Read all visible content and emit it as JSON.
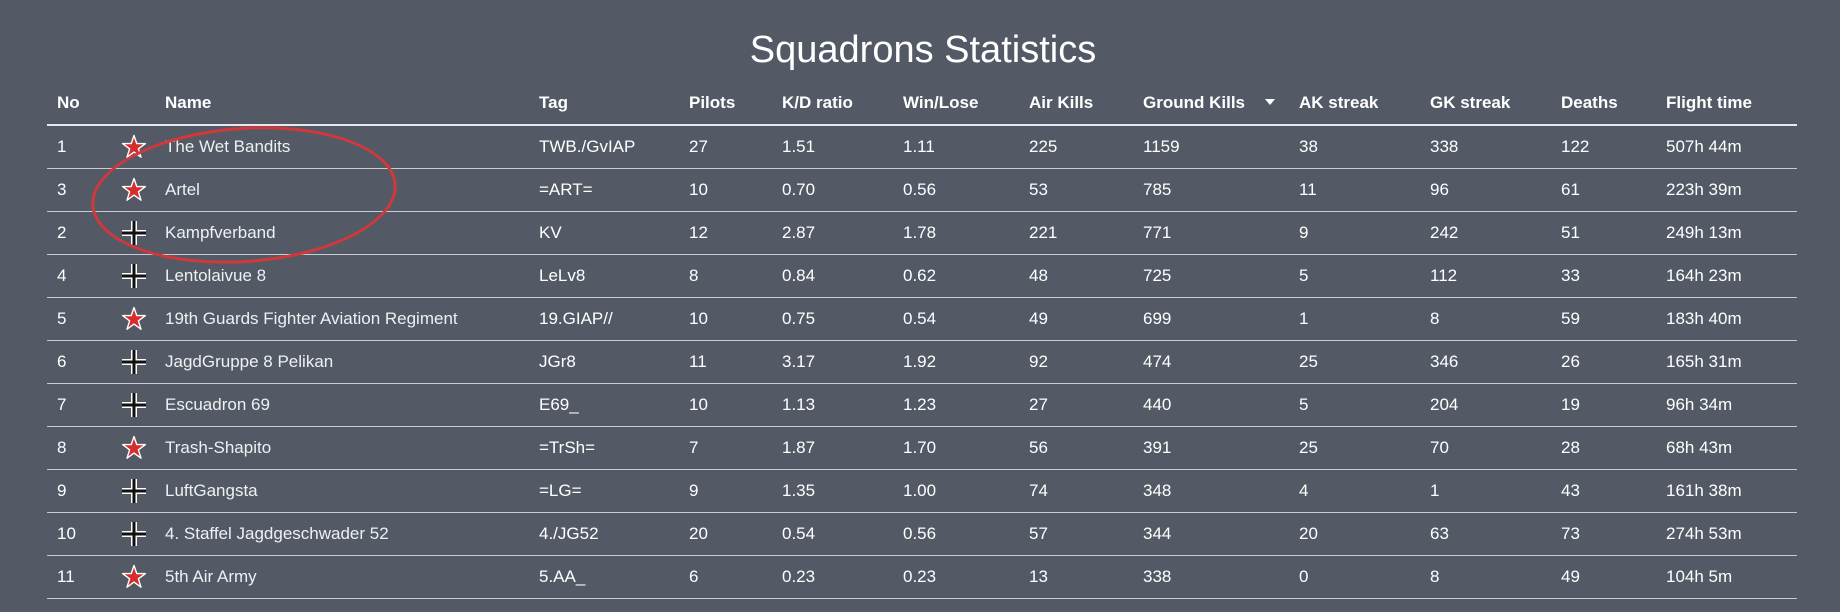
{
  "page": {
    "title": "Squadrons Statistics"
  },
  "table": {
    "headers": {
      "no": "No",
      "emblem": "",
      "name": "Name",
      "tag": "Tag",
      "pilots": "Pilots",
      "kd_ratio": "K/D ratio",
      "win_lose": "Win/Lose",
      "air_kills": "Air Kills",
      "ground_kills": "Ground Kills",
      "ak_streak": "AK streak",
      "gk_streak": "GK streak",
      "deaths": "Deaths",
      "flight_time": "Flight time"
    },
    "sorted_by": "ground_kills",
    "sort_direction": "descending",
    "rows": [
      {
        "no": "1",
        "emblem": "red-star-icon",
        "name": "The Wet Bandits",
        "tag": "TWB./GvIAP",
        "pilots": "27",
        "kd_ratio": "1.51",
        "win_lose": "1.11",
        "air_kills": "225",
        "ground_kills": "1159",
        "ak_streak": "38",
        "gk_streak": "338",
        "deaths": "122",
        "flight_time": "507h 44m"
      },
      {
        "no": "3",
        "emblem": "red-star-icon",
        "name": "Artel",
        "tag": "=ART=",
        "pilots": "10",
        "kd_ratio": "0.70",
        "win_lose": "0.56",
        "air_kills": "53",
        "ground_kills": "785",
        "ak_streak": "11",
        "gk_streak": "96",
        "deaths": "61",
        "flight_time": "223h 39m"
      },
      {
        "no": "2",
        "emblem": "balkenkreuz-icon",
        "name": "Kampfverband",
        "tag": "KV",
        "pilots": "12",
        "kd_ratio": "2.87",
        "win_lose": "1.78",
        "air_kills": "221",
        "ground_kills": "771",
        "ak_streak": "9",
        "gk_streak": "242",
        "deaths": "51",
        "flight_time": "249h 13m"
      },
      {
        "no": "4",
        "emblem": "balkenkreuz-icon",
        "name": "Lentolaivue 8",
        "tag": "LeLv8",
        "pilots": "8",
        "kd_ratio": "0.84",
        "win_lose": "0.62",
        "air_kills": "48",
        "ground_kills": "725",
        "ak_streak": "5",
        "gk_streak": "112",
        "deaths": "33",
        "flight_time": "164h 23m"
      },
      {
        "no": "5",
        "emblem": "red-star-icon",
        "name": "19th Guards Fighter Aviation Regiment",
        "tag": "19.GIAP//",
        "pilots": "10",
        "kd_ratio": "0.75",
        "win_lose": "0.54",
        "air_kills": "49",
        "ground_kills": "699",
        "ak_streak": "1",
        "gk_streak": "8",
        "deaths": "59",
        "flight_time": "183h 40m"
      },
      {
        "no": "6",
        "emblem": "balkenkreuz-icon",
        "name": "JagdGruppe 8 Pelikan",
        "tag": "JGr8",
        "pilots": "11",
        "kd_ratio": "3.17",
        "win_lose": "1.92",
        "air_kills": "92",
        "ground_kills": "474",
        "ak_streak": "25",
        "gk_streak": "346",
        "deaths": "26",
        "flight_time": "165h 31m"
      },
      {
        "no": "7",
        "emblem": "balkenkreuz-icon",
        "name": "Escuadron 69",
        "tag": "E69_",
        "pilots": "10",
        "kd_ratio": "1.13",
        "win_lose": "1.23",
        "air_kills": "27",
        "ground_kills": "440",
        "ak_streak": "5",
        "gk_streak": "204",
        "deaths": "19",
        "flight_time": "96h 34m"
      },
      {
        "no": "8",
        "emblem": "red-star-icon",
        "name": "Trash-Shapito",
        "tag": "=TrSh=",
        "pilots": "7",
        "kd_ratio": "1.87",
        "win_lose": "1.70",
        "air_kills": "56",
        "ground_kills": "391",
        "ak_streak": "25",
        "gk_streak": "70",
        "deaths": "28",
        "flight_time": "68h 43m"
      },
      {
        "no": "9",
        "emblem": "balkenkreuz-icon",
        "name": "LuftGangsta",
        "tag": "=LG=",
        "pilots": "9",
        "kd_ratio": "1.35",
        "win_lose": "1.00",
        "air_kills": "74",
        "ground_kills": "348",
        "ak_streak": "4",
        "gk_streak": "1",
        "deaths": "43",
        "flight_time": "161h 38m"
      },
      {
        "no": "10",
        "emblem": "balkenkreuz-icon",
        "name": "4. Staffel Jagdgeschwader 52",
        "tag": "4./JG52",
        "pilots": "20",
        "kd_ratio": "0.54",
        "win_lose": "0.56",
        "air_kills": "57",
        "ground_kills": "344",
        "ak_streak": "20",
        "gk_streak": "63",
        "deaths": "73",
        "flight_time": "274h 53m"
      },
      {
        "no": "11",
        "emblem": "red-star-icon",
        "name": "5th Air Army",
        "tag": "5.AA_",
        "pilots": "6",
        "kd_ratio": "0.23",
        "win_lose": "0.23",
        "air_kills": "13",
        "ground_kills": "338",
        "ak_streak": "0",
        "gk_streak": "8",
        "deaths": "49",
        "flight_time": "104h 5m"
      }
    ]
  },
  "colors": {
    "background": "#535a66",
    "text": "#ffffff",
    "star_red": "#d62e2e",
    "highlight": "#d2383a"
  }
}
